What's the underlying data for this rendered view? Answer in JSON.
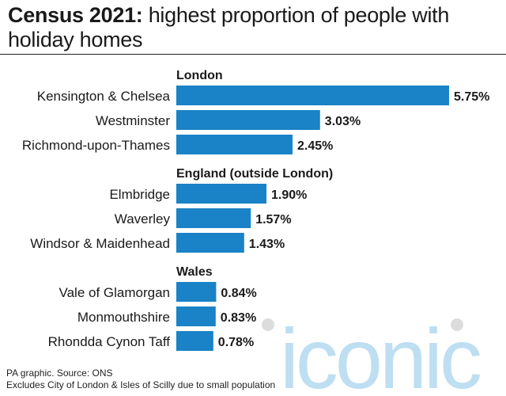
{
  "header": {
    "title_bold": "Census 2021:",
    "title_rest": "highest proportion of people with holiday homes"
  },
  "chart_data": {
    "type": "bar",
    "orientation": "horizontal",
    "bar_color": "#1a82c6",
    "groups": [
      {
        "name": "London",
        "categories": [
          "Kensington & Chelsea",
          "Westminster",
          "Richmond-upon-Thames"
        ],
        "values": [
          5.75,
          3.03,
          2.45
        ],
        "labels": [
          "5.75%",
          "3.03%",
          "2.45%"
        ]
      },
      {
        "name": "England (outside London)",
        "categories": [
          "Elmbridge",
          "Waverley",
          "Windsor & Maidenhead"
        ],
        "values": [
          1.9,
          1.57,
          1.43
        ],
        "labels": [
          "1.90%",
          "1.57%",
          "1.43%"
        ]
      },
      {
        "name": "Wales",
        "categories": [
          "Vale of Glamorgan",
          "Monmouthshire",
          "Rhondda Cynon Taff"
        ],
        "values": [
          0.84,
          0.83,
          0.78
        ],
        "labels": [
          "0.84%",
          "0.83%",
          "0.78%"
        ]
      }
    ],
    "xlim": [
      0,
      5.75
    ],
    "grid": false,
    "legend": "none"
  },
  "footer": {
    "source": "PA graphic. Source: ONS",
    "note": "Excludes City of London & Isles of Scilly due to small population"
  },
  "watermark": {
    "text": "iconic",
    "color": "#a9d4ee"
  }
}
